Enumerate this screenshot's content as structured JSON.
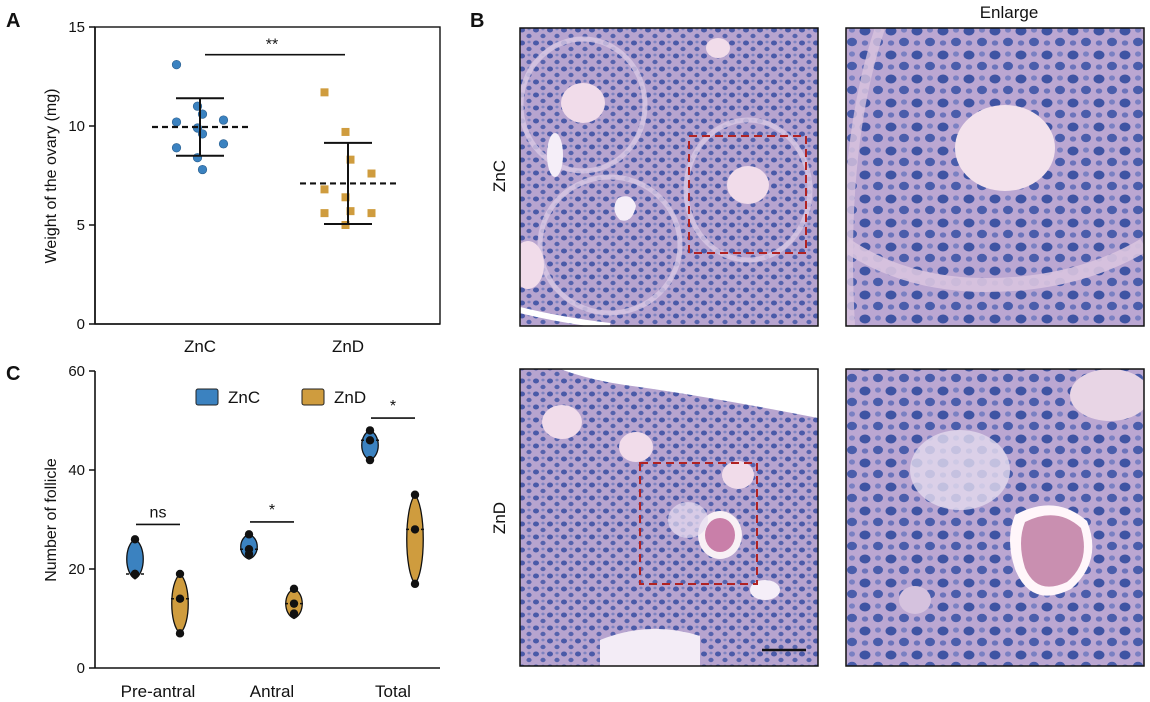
{
  "panel_labels": [
    "A",
    "B",
    "C"
  ],
  "chart_data": [
    {
      "type": "scatter",
      "panel": "A",
      "ylabel": "Weight of the ovary (mg)",
      "ylim": [
        0,
        15
      ],
      "yticks": [
        0,
        5,
        10,
        15
      ],
      "categories": [
        "ZnC",
        "ZnD"
      ],
      "series": [
        {
          "name": "ZnC",
          "color": "#3b82c0",
          "marker": "circle",
          "values": [
            13.1,
            11.0,
            10.6,
            10.3,
            10.2,
            9.9,
            9.6,
            9.1,
            8.9,
            8.4,
            7.8
          ],
          "mean": 9.95,
          "sd": 1.45
        },
        {
          "name": "ZnD",
          "color": "#cf9c3e",
          "marker": "square",
          "values": [
            11.7,
            9.7,
            8.3,
            7.6,
            6.8,
            6.4,
            5.7,
            5.6,
            5.6,
            5.0
          ],
          "mean": 7.1,
          "sd": 2.05
        }
      ],
      "significance": [
        {
          "label": "**",
          "between": [
            "ZnC",
            "ZnD"
          ],
          "y": 13.6
        }
      ]
    },
    {
      "type": "violin",
      "panel": "C",
      "ylabel": "Number of follicle",
      "ylim": [
        0,
        60
      ],
      "yticks": [
        0,
        20,
        40,
        60
      ],
      "categories": [
        "Pre-antral",
        "Antral",
        "Total"
      ],
      "legend": {
        "position": "top",
        "entries": [
          "ZnC",
          "ZnD"
        ]
      },
      "series": [
        {
          "name": "ZnC",
          "color": "#3b82c0",
          "values": [
            [
              26,
              19,
              19
            ],
            [
              27,
              24,
              23
            ],
            [
              48,
              46,
              42
            ]
          ],
          "ranges": [
            [
              18,
              26
            ],
            [
              22,
              27
            ],
            [
              42,
              48
            ]
          ]
        },
        {
          "name": "ZnD",
          "color": "#cf9c3e",
          "values": [
            [
              19,
              14,
              7
            ],
            [
              16,
              13,
              11
            ],
            [
              35,
              28,
              17
            ]
          ],
          "ranges": [
            [
              7,
              19
            ],
            [
              10,
              16
            ],
            [
              17,
              35
            ]
          ]
        }
      ],
      "significance": [
        {
          "label": "ns",
          "category": "Pre-antral",
          "y": 29
        },
        {
          "label": "*",
          "category": "Antral",
          "y": 29.5
        },
        {
          "label": "*",
          "category": "Total",
          "y": 50.5
        }
      ]
    }
  ],
  "histology": {
    "column_header": "Enlarge",
    "row_labels": [
      "ZnC",
      "ZnD"
    ],
    "colors": {
      "tissue": "#b7a4cf",
      "nuclei": "#4a5aa8",
      "oocyte": "#f1dcea",
      "zona": "#fff6fa",
      "box": "#b22222"
    }
  }
}
